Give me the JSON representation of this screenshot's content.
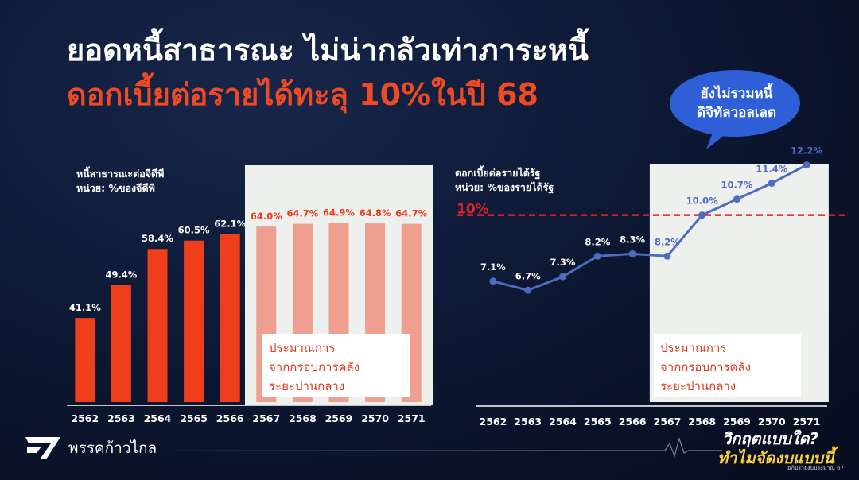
{
  "title_line1": "ยอดหนี้สาธารณะ ไม่น่ากลัวเท่าภาระหนี้",
  "title_line2": "ดอกเบี้ยต่อรายได้ทะลุ 10%ในปี 68",
  "bubble": {
    "line1": "ยังไม่รวมหนี้",
    "line2": "ดิจิทัลวอลเลต"
  },
  "logo_text": "พรรคก้าวไกล",
  "badge": {
    "line1": "วิกฤตแบบใด?",
    "line2": "ทำไมจัดงบแบบนี้",
    "line3": "อภิปรายงบประมาณ 67"
  },
  "colors": {
    "bar_actual": "#ee3e1c",
    "bar_forecast": "#ee9f90",
    "line": "#4e6bc0",
    "threshold": "#e02424",
    "forecast_panel": "#eef0ee"
  },
  "chart_data": [
    {
      "type": "bar",
      "label_line1": "หนี้สาธารณะต่อจีดีพี",
      "label_line2": "หน่วย: %ของจีดีพี",
      "categories": [
        "2562",
        "2563",
        "2564",
        "2565",
        "2566",
        "2567",
        "2568",
        "2569",
        "2570",
        "2571"
      ],
      "values": [
        41.1,
        49.4,
        58.4,
        60.5,
        62.1,
        64.0,
        64.7,
        64.9,
        64.8,
        64.7
      ],
      "data_labels": [
        "41.1%",
        "49.4%",
        "58.4%",
        "60.5%",
        "62.1%",
        "64.0%",
        "64.7%",
        "64.9%",
        "64.8%",
        "64.7%"
      ],
      "forecast_from": "2567",
      "forecast_note_line1": "ประมาณการ",
      "forecast_note_line2": "จากกรอบการคลัง",
      "forecast_note_line3": "ระยะปานกลาง",
      "ylim": [
        20,
        70
      ],
      "grid": false
    },
    {
      "type": "line",
      "label_line1": "ดอกเบี้ยต่อรายได้รัฐ",
      "label_line2": "หน่วย: %ของรายได้รัฐ",
      "categories": [
        "2562",
        "2563",
        "2564",
        "2565",
        "2566",
        "2567",
        "2568",
        "2569",
        "2570",
        "2571"
      ],
      "values": [
        7.1,
        6.7,
        7.3,
        8.2,
        8.3,
        8.2,
        10.0,
        10.7,
        11.4,
        12.2
      ],
      "data_labels": [
        "7.1%",
        "6.7%",
        "7.3%",
        "8.2%",
        "8.3%",
        "8.2%",
        "10.0%",
        "10.7%",
        "11.4%",
        "12.2%"
      ],
      "threshold": 10,
      "threshold_label": "10%",
      "forecast_from": "2567",
      "forecast_note_line1": "ประมาณการ",
      "forecast_note_line2": "จากกรอบการคลัง",
      "forecast_note_line3": "ระยะปานกลาง",
      "ylim": [
        2,
        14
      ],
      "grid": false
    }
  ]
}
